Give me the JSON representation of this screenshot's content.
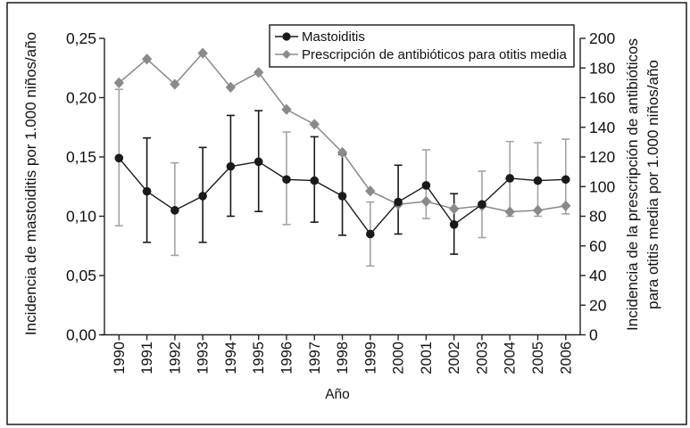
{
  "figure": {
    "background": "#ffffff",
    "border_color": "#1a1a1a"
  },
  "chart_data": {
    "type": "line",
    "title": "",
    "xlabel": "Año",
    "x_tick_labels": [
      "1990",
      "1991",
      "1992",
      "1993",
      "1994",
      "1995",
      "1996",
      "1997",
      "1998",
      "1999",
      "2000",
      "2001",
      "2002",
      "2003",
      "2004",
      "2005",
      "2006"
    ],
    "y_left": {
      "label": "Incidencia de mastoiditis por 1.000 niños/año",
      "tick_labels": [
        "0,00",
        "0,05",
        "0,10",
        "0,15",
        "0,20",
        "0,25"
      ],
      "tick_values": [
        0,
        0.05,
        0.1,
        0.15,
        0.2,
        0.25
      ],
      "range": [
        0,
        0.25
      ]
    },
    "y_right": {
      "label_lines": [
        "Incidencia de la prescripción de antibióticos",
        "para otitis media por 1.000 niños/año"
      ],
      "tick_labels": [
        "0",
        "20",
        "40",
        "60",
        "80",
        "100",
        "120",
        "140",
        "160",
        "180",
        "200"
      ],
      "tick_values": [
        0,
        20,
        40,
        60,
        80,
        100,
        120,
        140,
        160,
        180,
        200
      ],
      "range": [
        0,
        200
      ]
    },
    "grid": false,
    "legend": {
      "position": "top-right",
      "border": true
    },
    "colors": {
      "mastoiditis": "#1a1a1a",
      "prescription": "#8a8a8a",
      "error_bar_black": "#1a1a1a",
      "error_bar_gray": "#a3a3a3"
    },
    "series": [
      {
        "name": "Mastoiditis",
        "axis": "left",
        "marker": "circle",
        "color_key": "mastoiditis",
        "values": [
          0.149,
          0.121,
          0.105,
          0.117,
          0.142,
          0.146,
          0.131,
          0.13,
          0.117,
          0.085,
          0.112,
          0.126,
          0.093,
          0.11,
          0.132,
          0.13,
          0.131
        ],
        "ci_low": [
          0.092,
          0.078,
          0.067,
          0.078,
          0.1,
          0.104,
          0.093,
          0.095,
          0.084,
          0.058,
          0.085,
          0.098,
          0.068,
          0.082,
          0.1,
          0.1,
          0.102
        ],
        "ci_high": [
          0.207,
          0.166,
          0.145,
          0.158,
          0.185,
          0.189,
          0.171,
          0.167,
          0.152,
          0.112,
          0.143,
          0.156,
          0.119,
          0.138,
          0.163,
          0.162,
          0.165
        ],
        "ci_colors": [
          "gray",
          "black",
          "gray",
          "black",
          "black",
          "black",
          "gray",
          "black",
          "black",
          "gray",
          "black",
          "gray",
          "black",
          "gray",
          "gray",
          "gray",
          "gray"
        ]
      },
      {
        "name": "Prescripción de antibióticos para otitis media",
        "axis": "right",
        "marker": "diamond",
        "color_key": "prescription",
        "values": [
          170,
          186,
          169,
          190,
          167,
          177,
          152,
          142,
          123,
          97,
          88,
          90,
          85,
          87,
          83,
          84,
          87
        ]
      }
    ]
  }
}
